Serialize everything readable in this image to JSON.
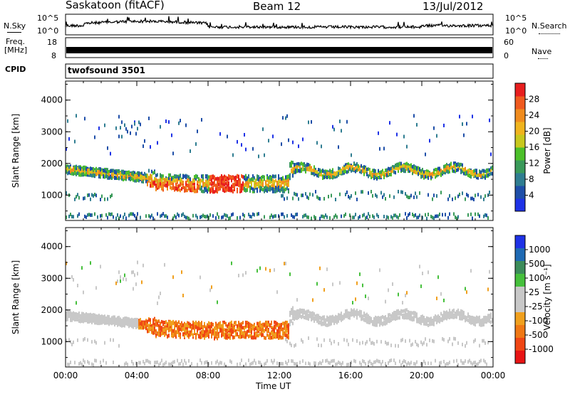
{
  "header": {
    "title": "Saskatoon (fitACF)",
    "beam": "Beam 12",
    "date": "13/Jul/2012"
  },
  "left_labels": {
    "nsky": "N.Sky",
    "freq": "Freq.",
    "mhz": "[MHz]",
    "cpid": "CPID"
  },
  "right_labels": {
    "nsearch": "N.Search",
    "nave": "Nave"
  },
  "cpid_value": "twofsound 3501",
  "noise_axis": {
    "top": "10^5",
    "bottom": "10^0"
  },
  "freq_axis": {
    "left_top": "18",
    "left_bottom": "8",
    "right_top": "60",
    "right_bottom": "0"
  },
  "colors": {
    "power_scale": [
      "#1e32e6",
      "#1e4ea8",
      "#2f7d91",
      "#3a9a5a",
      "#4cc02a",
      "#c8c81e",
      "#f0b41e",
      "#f08c1e",
      "#f05a1e",
      "#e81e1e"
    ],
    "velocity_scale": [
      "#1e32e6",
      "#1e6ab4",
      "#3c8c5a",
      "#46c03c",
      "#c8c8c8",
      "#c8c8c8",
      "#f0a01e",
      "#f07814",
      "#f04614",
      "#e81414"
    ]
  },
  "chart_data": [
    {
      "type": "heatmap",
      "title": "Power",
      "ylabel": "Slant Range [km]",
      "xlabel": "",
      "ylim": [
        200,
        4600
      ],
      "xlim": [
        0,
        24
      ],
      "y_ticks": [
        "1000",
        "2000",
        "3000",
        "4000"
      ],
      "colorbar_label": "Power [dB]",
      "colorbar_ticks": [
        "4",
        "8",
        "12",
        "16",
        "20",
        "24",
        "28"
      ]
    },
    {
      "type": "heatmap",
      "title": "Velocity",
      "ylabel": "Slant Range [km]",
      "xlabel": "Time UT",
      "ylim": [
        200,
        4600
      ],
      "xlim": [
        0,
        24
      ],
      "y_ticks": [
        "1000",
        "2000",
        "3000",
        "4000"
      ],
      "x_ticks": [
        "00:00",
        "04:00",
        "08:00",
        "12:00",
        "16:00",
        "20:00",
        "00:00"
      ],
      "colorbar_label": "Velocity [m s⁻¹]",
      "colorbar_ticks": [
        "1000",
        "500",
        "100",
        "25",
        "-25",
        "-100",
        "-500",
        "-1000"
      ]
    }
  ]
}
